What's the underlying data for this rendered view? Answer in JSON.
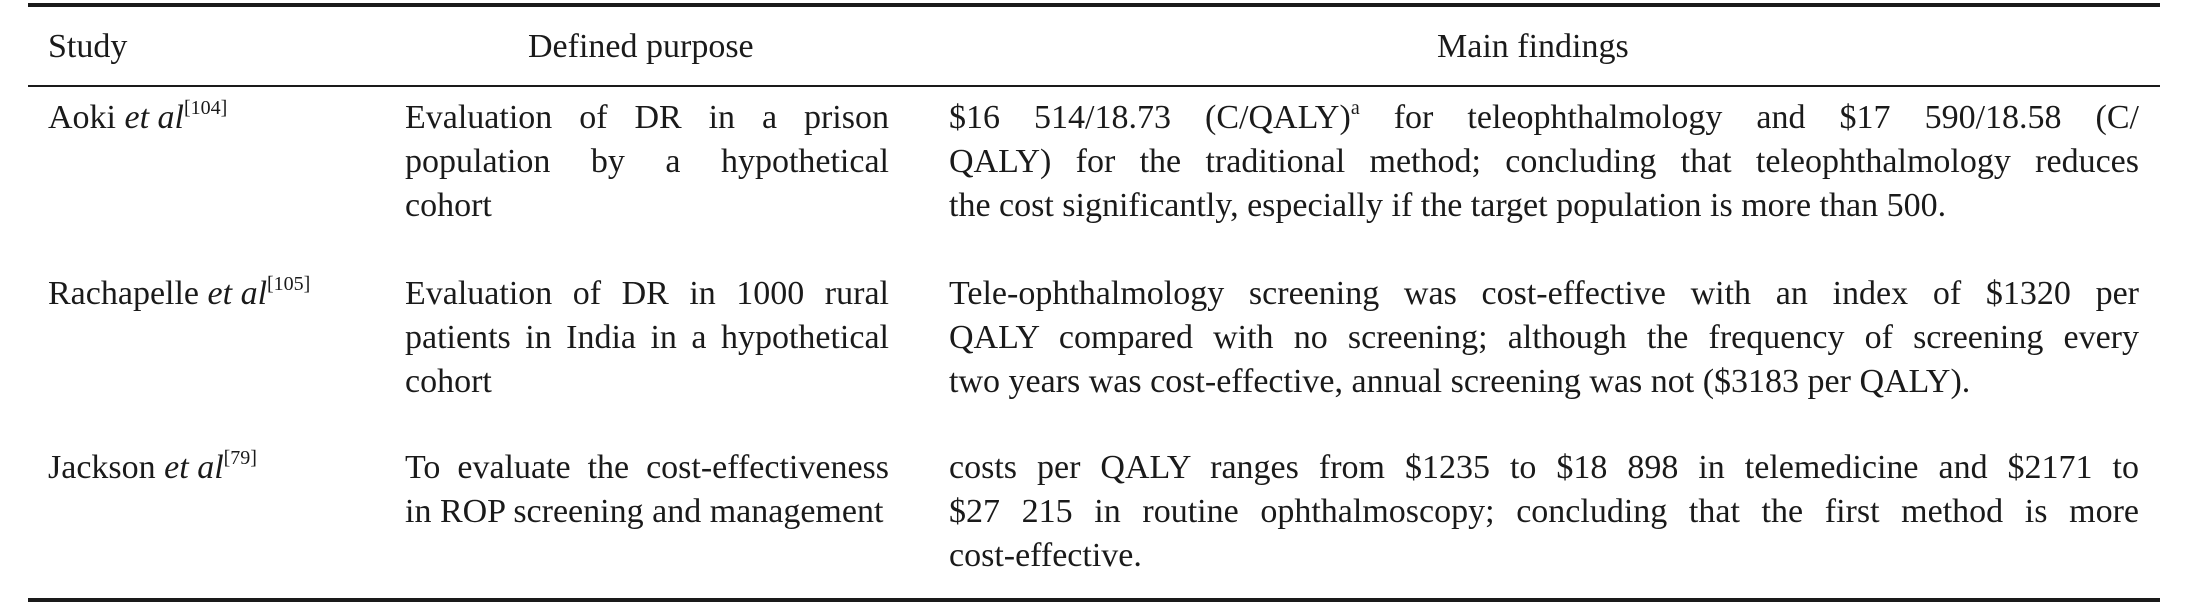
{
  "table": {
    "headers": {
      "study": "Study",
      "purpose": "Defined purpose",
      "findings": "Main findings"
    },
    "rows": [
      {
        "study_author": "Aoki ",
        "study_etal": "et al",
        "study_ref": "[104]",
        "purpose_lines": [
          "Evaluation of DR in a prison",
          "population by a hypothetical",
          "cohort"
        ],
        "findings_line1_pre": "$16 514/18.73 (C/QALY)",
        "findings_line1_sup": "a",
        "findings_line1_post": " for teleophthalmology and $17 590/18.58 (C/",
        "findings_lines": [
          "QALY) for the traditional method; concluding that teleophthalmology reduces",
          "the cost significantly, especially if the target population is more than 500."
        ]
      },
      {
        "study_author": "Rachapelle ",
        "study_etal": "et al",
        "study_ref": "[105]",
        "purpose_lines": [
          "Evaluation of DR in 1000 rural",
          "patients in India in a hypothetical",
          "cohort"
        ],
        "findings_lines": [
          "Tele-ophthalmology screening was cost-effective with an index of $1320 per",
          "QALY compared with no screening; although the frequency of screening every",
          "two years was cost-effective, annual screening was not ($3183 per QALY)."
        ]
      },
      {
        "study_author": "Jackson ",
        "study_etal": "et al",
        "study_ref": "[79]",
        "purpose_lines": [
          "To evaluate the cost-effectiveness",
          "in ROP screening and management"
        ],
        "findings_lines": [
          "costs per QALY ranges from $1235 to $18 898 in telemedicine and $2171 to",
          "$27 215 in routine ophthalmoscopy; concluding that the first method is more",
          "cost-effective."
        ]
      }
    ]
  }
}
